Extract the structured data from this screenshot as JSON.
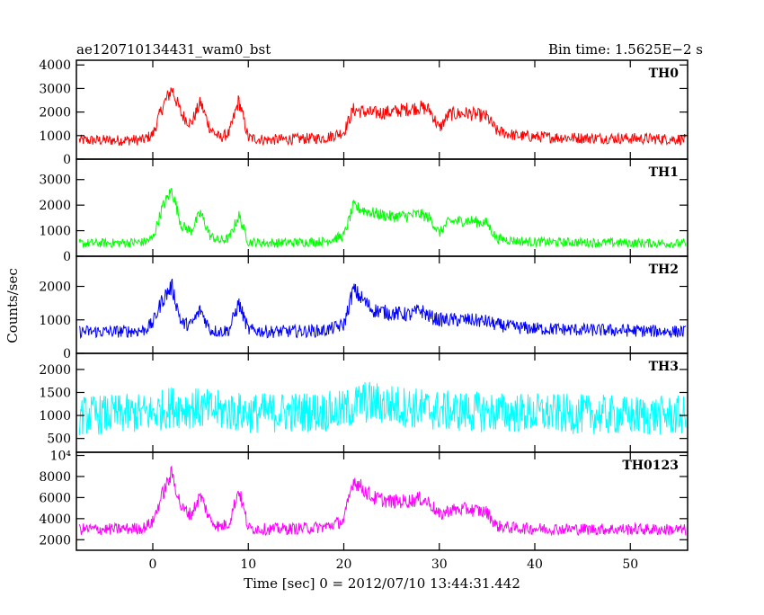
{
  "header": {
    "left_title": "ae120710134431_wam0_bst",
    "right_title": "Bin time: 1.5625E−2 s"
  },
  "chart_data": {
    "type": "line",
    "title": "ae120710134431_wam0_bst",
    "subtitle": "Bin time: 1.5625E−2 s",
    "xlabel": "Time [sec] 0 = 2012/07/10 13:44:31.442",
    "ylabel": "Counts/sec",
    "xlim": [
      -8,
      56
    ],
    "x_ticks": [
      "0",
      "10",
      "20",
      "30",
      "40",
      "50"
    ],
    "x_tick_values": [
      0,
      10,
      20,
      30,
      40,
      50
    ],
    "grid": false,
    "series": [
      {
        "name": "TH0",
        "color": "#ff0000",
        "ylim": [
          0,
          4200
        ],
        "y_ticks": [
          "0",
          "1000",
          "2000",
          "3000",
          "4000"
        ],
        "y_tick_values": [
          0,
          1000,
          2000,
          3000,
          4000
        ],
        "x": [
          -8,
          -4,
          -1,
          0,
          1,
          2,
          3,
          4,
          5,
          6,
          7,
          8,
          9,
          10,
          12,
          15,
          18,
          20,
          21,
          23,
          25,
          27,
          28,
          29,
          30,
          31,
          33,
          35,
          36,
          38,
          40,
          45,
          50,
          55,
          56
        ],
        "y": [
          800,
          800,
          820,
          1050,
          2200,
          3000,
          1900,
          1500,
          2400,
          1300,
          900,
          1100,
          2500,
          900,
          820,
          860,
          900,
          1150,
          2100,
          1950,
          2000,
          2150,
          2200,
          2100,
          1300,
          1900,
          1950,
          1800,
          1200,
          1000,
          950,
          900,
          880,
          850,
          820
        ],
        "noise": 320
      },
      {
        "name": "TH1",
        "color": "#00ff00",
        "ylim": [
          0,
          3800
        ],
        "y_ticks": [
          "0",
          "1000",
          "2000",
          "3000"
        ],
        "y_tick_values": [
          0,
          1000,
          2000,
          3000
        ],
        "x": [
          -8,
          -4,
          -1,
          0,
          1,
          2,
          3,
          4,
          5,
          6,
          7,
          8,
          9,
          10,
          12,
          15,
          18,
          20,
          21,
          23,
          25,
          27,
          28,
          29,
          30,
          31,
          33,
          35,
          36,
          38,
          40,
          45,
          50,
          55,
          56
        ],
        "y": [
          500,
          520,
          550,
          700,
          1900,
          2600,
          1200,
          1000,
          1700,
          800,
          600,
          700,
          1600,
          560,
          520,
          540,
          580,
          800,
          1950,
          1700,
          1550,
          1600,
          1650,
          1500,
          900,
          1350,
          1400,
          1300,
          700,
          600,
          560,
          540,
          520,
          500,
          480
        ],
        "noise": 260
      },
      {
        "name": "TH2",
        "color": "#0000ff",
        "ylim": [
          0,
          2900
        ],
        "y_ticks": [
          "0",
          "1000",
          "2000"
        ],
        "y_tick_values": [
          0,
          1000,
          2000
        ],
        "x": [
          -8,
          -4,
          -1,
          0,
          1,
          2,
          3,
          4,
          5,
          6,
          7,
          8,
          9,
          10,
          12,
          15,
          18,
          20,
          21,
          23,
          25,
          27,
          28,
          29,
          30,
          31,
          33,
          35,
          36,
          38,
          40,
          45,
          50,
          55,
          56
        ],
        "y": [
          650,
          650,
          680,
          900,
          1600,
          2000,
          900,
          850,
          1300,
          700,
          650,
          700,
          1500,
          700,
          650,
          660,
          680,
          850,
          1900,
          1300,
          1200,
          1150,
          1300,
          1100,
          1000,
          1000,
          1000,
          950,
          850,
          780,
          740,
          700,
          680,
          650,
          640
        ],
        "noise": 250
      },
      {
        "name": "TH3",
        "color": "#00ffff",
        "ylim": [
          200,
          2350
        ],
        "y_ticks": [
          "500",
          "1000",
          "1500",
          "2000"
        ],
        "y_tick_values": [
          500,
          1000,
          1500,
          2000
        ],
        "x": [
          -8,
          0,
          2,
          10,
          20,
          22,
          30,
          40,
          50,
          56
        ],
        "y": [
          1000,
          1050,
          1200,
          1050,
          1100,
          1300,
          1100,
          1050,
          1000,
          1000
        ],
        "noise": 480
      },
      {
        "name": "TH0123",
        "color": "#ff00ff",
        "ylim": [
          1000,
          10300
        ],
        "y_ticks": [
          "2000",
          "4000",
          "6000",
          "8000",
          "10⁴"
        ],
        "y_tick_values": [
          2000,
          4000,
          6000,
          8000,
          10000
        ],
        "x": [
          -8,
          -4,
          -1,
          0,
          1,
          2,
          3,
          4,
          5,
          6,
          7,
          8,
          9,
          10,
          12,
          15,
          18,
          20,
          21,
          23,
          25,
          27,
          28,
          29,
          30,
          31,
          33,
          35,
          36,
          38,
          40,
          45,
          50,
          55,
          56
        ],
        "y": [
          3000,
          3000,
          3100,
          3700,
          6300,
          8300,
          5000,
          4400,
          6200,
          3900,
          3200,
          3600,
          6800,
          3100,
          3000,
          3050,
          3200,
          3800,
          7700,
          6000,
          5600,
          5700,
          5900,
          5500,
          4300,
          4800,
          4900,
          4600,
          3300,
          3100,
          3050,
          3000,
          3000,
          2950,
          2900
        ],
        "noise": 700
      }
    ]
  }
}
